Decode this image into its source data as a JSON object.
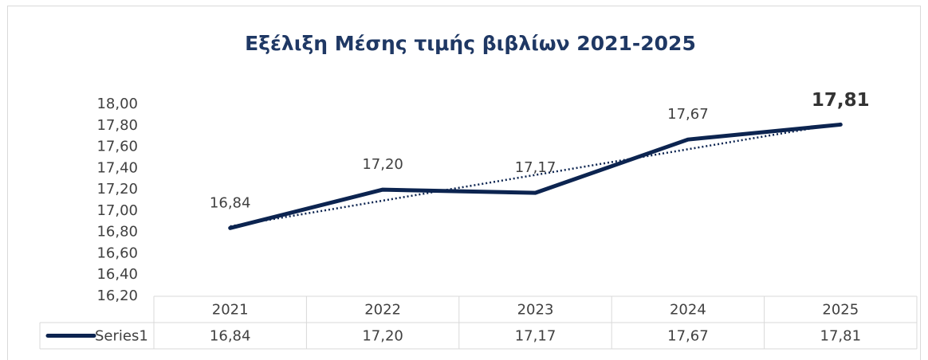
{
  "chart_data": {
    "type": "line",
    "title": "Εξέλιξη  Μέσης τιμής βιβλίων 2021-2025",
    "categories": [
      "2021",
      "2022",
      "2023",
      "2024",
      "2025"
    ],
    "series": [
      {
        "name": "Series1",
        "color": "#0c2450",
        "values": [
          16.84,
          17.2,
          17.17,
          17.67,
          17.81
        ],
        "value_labels": [
          "16,84",
          "17,20",
          "17,17",
          "17,67",
          "17,81"
        ]
      }
    ],
    "ylim": [
      16.2,
      18.0
    ],
    "yticks": [
      {
        "value": 16.2,
        "label": "16,20"
      },
      {
        "value": 16.4,
        "label": "16,40"
      },
      {
        "value": 16.6,
        "label": "16,60"
      },
      {
        "value": 16.8,
        "label": "16,80"
      },
      {
        "value": 17.0,
        "label": "17,00"
      },
      {
        "value": 17.2,
        "label": "17,20"
      },
      {
        "value": 17.4,
        "label": "17,40"
      },
      {
        "value": 17.6,
        "label": "17,60"
      },
      {
        "value": 17.8,
        "label": "17,80"
      },
      {
        "value": 18.0,
        "label": "18,00"
      }
    ],
    "trendline": "linear",
    "trendline_color": "#0c2450",
    "data_table": true
  }
}
